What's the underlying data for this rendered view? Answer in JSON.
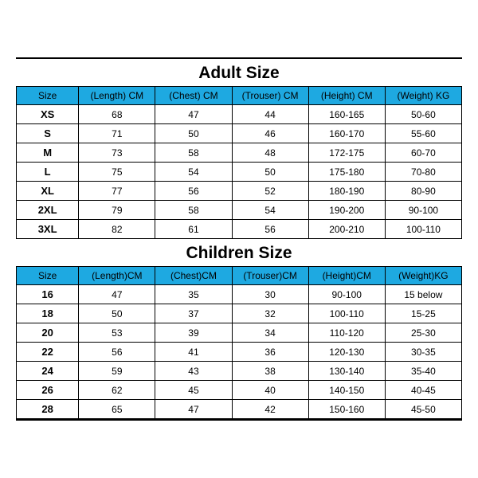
{
  "header_bg": "#1ea9e1",
  "adult": {
    "title": "Adult Size",
    "columns": [
      "Size",
      "(Length)  CM",
      "(Chest)  CM",
      "(Trouser)  CM",
      "(Height)  CM",
      "(Weight)  KG"
    ],
    "rows": [
      [
        "XS",
        "68",
        "47",
        "44",
        "160-165",
        "50-60"
      ],
      [
        "S",
        "71",
        "50",
        "46",
        "160-170",
        "55-60"
      ],
      [
        "M",
        "73",
        "58",
        "48",
        "172-175",
        "60-70"
      ],
      [
        "L",
        "75",
        "54",
        "50",
        "175-180",
        "70-80"
      ],
      [
        "XL",
        "77",
        "56",
        "52",
        "180-190",
        "80-90"
      ],
      [
        "2XL",
        "79",
        "58",
        "54",
        "190-200",
        "90-100"
      ],
      [
        "3XL",
        "82",
        "61",
        "56",
        "200-210",
        "100-110"
      ]
    ]
  },
  "children": {
    "title": "Children Size",
    "columns": [
      "Size",
      "(Length)CM",
      "(Chest)CM",
      "(Trouser)CM",
      "(Height)CM",
      "(Weight)KG"
    ],
    "rows": [
      [
        "16",
        "47",
        "35",
        "30",
        "90-100",
        "15 below"
      ],
      [
        "18",
        "50",
        "37",
        "32",
        "100-110",
        "15-25"
      ],
      [
        "20",
        "53",
        "39",
        "34",
        "110-120",
        "25-30"
      ],
      [
        "22",
        "56",
        "41",
        "36",
        "120-130",
        "30-35"
      ],
      [
        "24",
        "59",
        "43",
        "38",
        "130-140",
        "35-40"
      ],
      [
        "26",
        "62",
        "45",
        "40",
        "140-150",
        "40-45"
      ],
      [
        "28",
        "65",
        "47",
        "42",
        "150-160",
        "45-50"
      ]
    ]
  }
}
